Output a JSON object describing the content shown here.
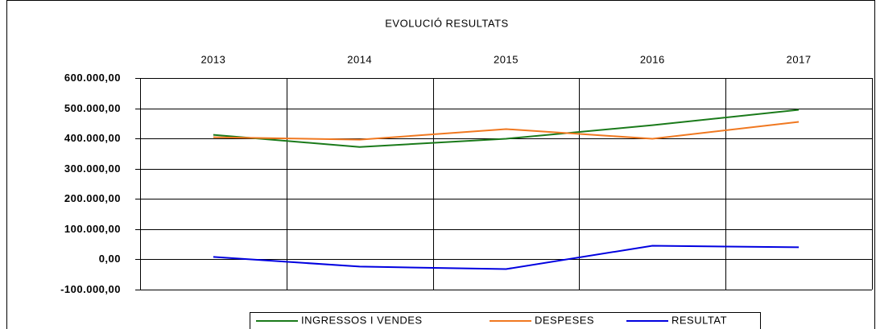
{
  "chart_data": {
    "type": "line",
    "title": "EVOLUCIÓ RESULTATS",
    "categories": [
      "2013",
      "2014",
      "2015",
      "2016",
      "2017"
    ],
    "series": [
      {
        "name": "INGRESSOS I VENDES",
        "color": "#1a7a1a",
        "values": [
          412000,
          372000,
          399000,
          444000,
          495000
        ]
      },
      {
        "name": "DESPESES",
        "color": "#f07820",
        "values": [
          404000,
          396000,
          431000,
          399000,
          455000
        ]
      },
      {
        "name": "RESULTAT",
        "color": "#0000e0",
        "values": [
          8000,
          -24000,
          -32000,
          45000,
          40000
        ]
      }
    ],
    "ylim": [
      -100000,
      600000
    ],
    "yticks": [
      {
        "value": -100000,
        "label": "-100.000,00"
      },
      {
        "value": 0,
        "label": "0,00"
      },
      {
        "value": 100000,
        "label": "100.000,00"
      },
      {
        "value": 200000,
        "label": "200.000,00"
      },
      {
        "value": 300000,
        "label": "300.000,00"
      },
      {
        "value": 400000,
        "label": "400.000,00"
      },
      {
        "value": 500000,
        "label": "500.000,00"
      },
      {
        "value": 600000,
        "label": "600.000,00"
      }
    ],
    "grid": true,
    "legend": "bottom"
  }
}
